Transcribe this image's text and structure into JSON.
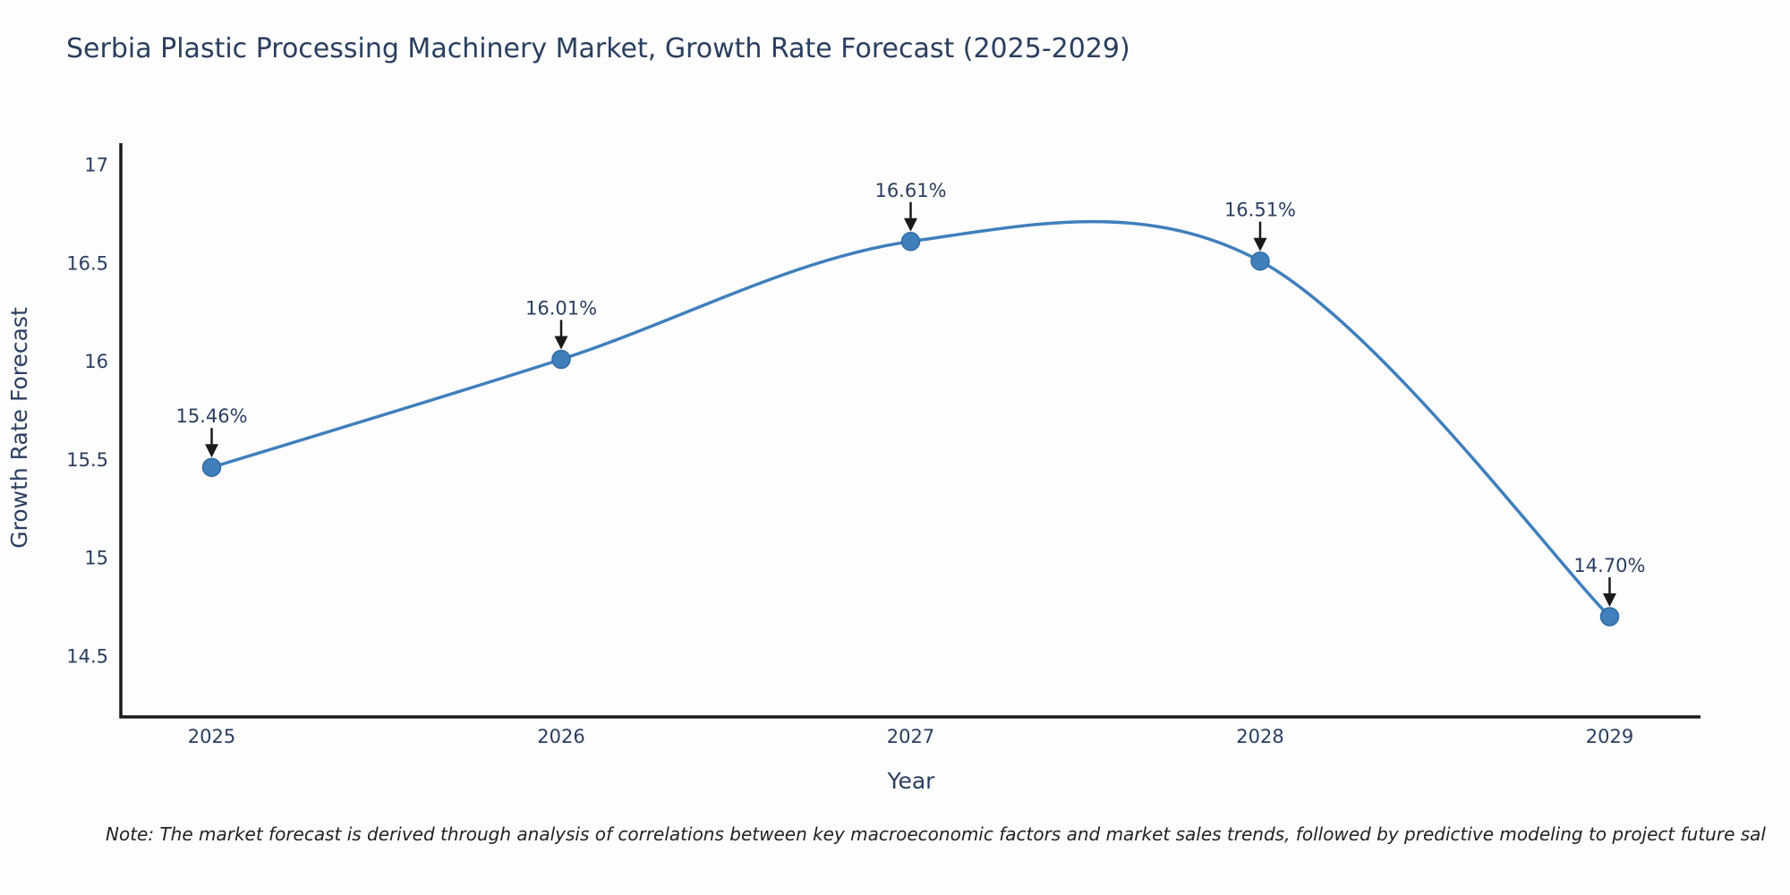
{
  "page": {
    "background": "#fdfdfd"
  },
  "chart_data": {
    "type": "line",
    "title": "Serbia Plastic Processing Machinery Market, Growth Rate Forecast (2025-2029)",
    "xlabel": "Year",
    "ylabel": "Growth Rate Forecast",
    "x": [
      2025,
      2026,
      2027,
      2028,
      2029
    ],
    "series": [
      {
        "name": "Growth Rate Forecast",
        "values": [
          15.46,
          16.01,
          16.61,
          16.51,
          14.7
        ]
      }
    ],
    "point_labels": [
      "15.46%",
      "16.01%",
      "16.61%",
      "16.51%",
      "14.70%"
    ],
    "xticks": [
      "2025",
      "2026",
      "2027",
      "2028",
      "2029"
    ],
    "yticks": [
      "14.5",
      "15",
      "15.5",
      "16",
      "16.5",
      "17"
    ],
    "xlim": [
      2024.74,
      2029.26
    ],
    "ylim": [
      14.19,
      17.11
    ],
    "line_shape": "spline",
    "grid": false,
    "legend_position": "none",
    "colors": {
      "line": "#3f7fbc",
      "marker": "#3f7fbc",
      "marker_edge": "#2f6ba3",
      "axis": "#1a1a1a",
      "text": "#2a3f5f",
      "arrow": "#1a1a1a"
    }
  },
  "note": "Note: The market forecast is derived through analysis of correlations between key macroeconomic factors and market sales trends, followed by predictive modeling to project future sal"
}
